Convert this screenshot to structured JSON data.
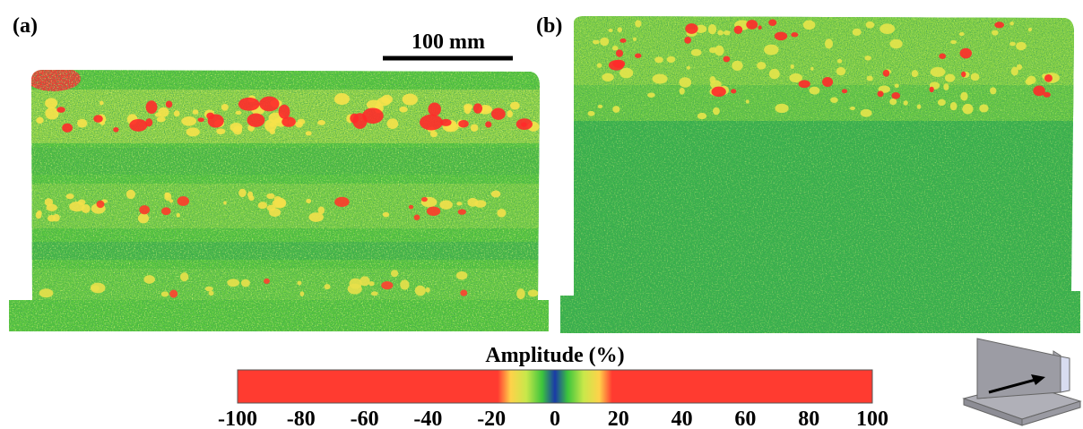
{
  "panels": [
    {
      "label": "(a)"
    },
    {
      "label": "(b)"
    }
  ],
  "scale_bar": {
    "label": "100 mm"
  },
  "colorbar": {
    "title": "Amplitude (%)",
    "lim": [
      -100,
      100
    ],
    "ticks": [
      -100,
      -80,
      -60,
      -40,
      -20,
      0,
      20,
      40,
      60,
      80,
      100
    ]
  }
}
